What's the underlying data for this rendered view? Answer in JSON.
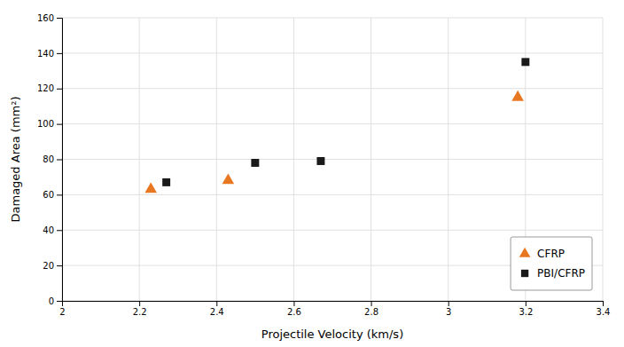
{
  "chart_data": {
    "type": "scatter",
    "xlabel": "Projectile Velocity (km/s)",
    "ylabel": "Damaged Area (mm²)",
    "series": [
      {
        "name": "CFRP",
        "color": "#E87722",
        "marker": "triangle",
        "x": [
          2.23,
          2.43,
          3.18
        ],
        "values": [
          63,
          68,
          115
        ]
      },
      {
        "name": "PBI/CFRP",
        "color": "#1A1A1A",
        "marker": "square",
        "x": [
          2.27,
          2.5,
          2.67,
          3.2
        ],
        "values": [
          67,
          78,
          79,
          135
        ]
      }
    ],
    "xlim": [
      2.0,
      3.4
    ],
    "ylim": [
      0,
      160
    ],
    "xticks": [
      2,
      2.2,
      2.4,
      2.6,
      2.8,
      3,
      3.2,
      3.4
    ],
    "yticks": [
      0,
      20,
      40,
      60,
      80,
      100,
      120,
      140,
      160
    ],
    "grid": true,
    "legend": "lower right"
  }
}
